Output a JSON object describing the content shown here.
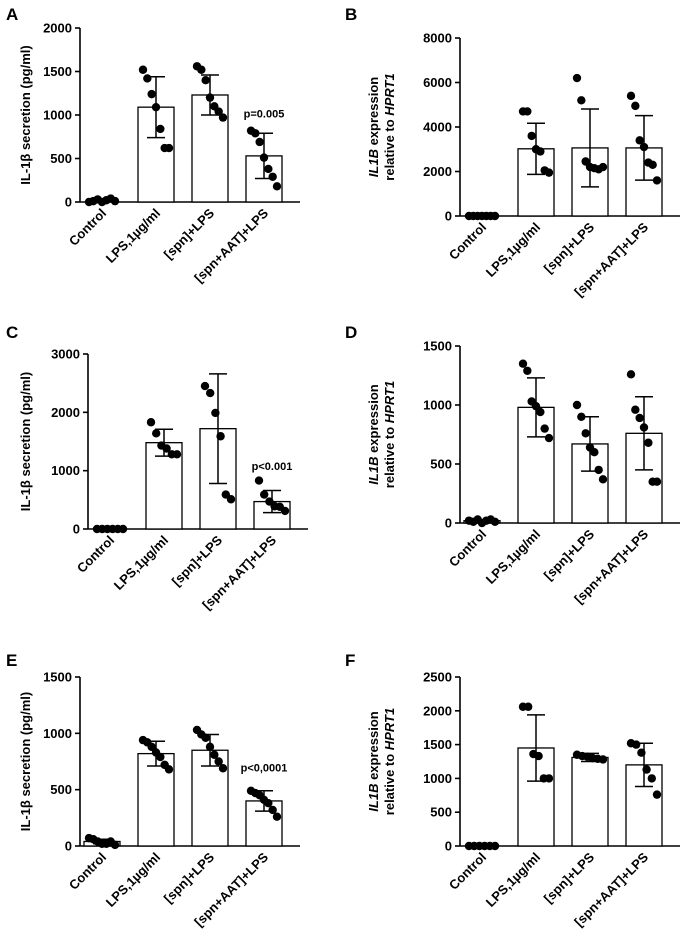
{
  "chart_data": [
    {
      "panel": "A",
      "type": "bar",
      "ylabel": "IL-1β secretion (pg/ml)",
      "ylim": [
        0,
        2000
      ],
      "yticks": [
        0,
        500,
        1000,
        1500,
        2000
      ],
      "categories": [
        "Control",
        "LPS,1µg/ml",
        "[spn]+LPS",
        "[spn+AAT]+LPS"
      ],
      "means": [
        20,
        1090,
        1230,
        530
      ],
      "sd": [
        10,
        350,
        230,
        260
      ],
      "points": [
        [
          0,
          10,
          30,
          0,
          20,
          40,
          10
        ],
        [
          1520,
          1420,
          1240,
          1090,
          840,
          620,
          620
        ],
        [
          1560,
          1520,
          1400,
          1200,
          1100,
          1040,
          970
        ],
        [
          820,
          790,
          690,
          510,
          380,
          290,
          180
        ]
      ],
      "annotation": {
        "category": 3,
        "text": "p=0.005",
        "y": 970
      }
    },
    {
      "panel": "B",
      "type": "bar",
      "ylabel_main": "IL1B",
      "ylabel_main_suffix": " expression",
      "ylabel_second_prefix": "relative to ",
      "ylabel_second": "HPRT1",
      "ylim": [
        0,
        8000
      ],
      "yticks": [
        0,
        2000,
        4000,
        6000,
        8000
      ],
      "categories": [
        "Control",
        "LPS,1µg/ml",
        "[spn]+LPS",
        "[spn+AAT]+LPS"
      ],
      "means": [
        10,
        3020,
        3060,
        3060
      ],
      "sd": [
        5,
        1150,
        1750,
        1450
      ],
      "points": [
        [
          0,
          0,
          0,
          0,
          0,
          0,
          0
        ],
        [
          4700,
          4700,
          3600,
          3000,
          2900,
          2050,
          1950
        ],
        [
          6200,
          5200,
          2450,
          2200,
          2150,
          2100,
          2200
        ],
        [
          5400,
          4950,
          3400,
          3100,
          2400,
          2300,
          1600
        ]
      ]
    },
    {
      "panel": "C",
      "type": "bar",
      "ylabel": "IL-1β secretion (pg/ml)",
      "ylim": [
        0,
        3000
      ],
      "yticks": [
        0,
        1000,
        2000,
        3000
      ],
      "categories": [
        "Control",
        "LPS,1µg/ml",
        "[spn]+LPS",
        "[spn+AAT]+LPS"
      ],
      "means": [
        10,
        1480,
        1720,
        470
      ],
      "sd": [
        5,
        230,
        940,
        190
      ],
      "points": [
        [
          0,
          0,
          0,
          0,
          0,
          0
        ],
        [
          1830,
          1640,
          1430,
          1380,
          1280,
          1280
        ],
        [
          2450,
          2330,
          1990,
          1590,
          590,
          510
        ],
        [
          830,
          590,
          470,
          390,
          380,
          310
        ]
      ],
      "annotation": {
        "category": 3,
        "text": "p<0.001",
        "y": 1010
      }
    },
    {
      "panel": "D",
      "type": "bar",
      "ylabel_main": "IL1B",
      "ylabel_main_suffix": " expression",
      "ylabel_second_prefix": "relative to ",
      "ylabel_second": "HPRT1",
      "ylim": [
        0,
        1500
      ],
      "yticks": [
        0,
        500,
        1000,
        1500
      ],
      "categories": [
        "Control",
        "LPS,1µg/ml",
        "[spn]+LPS",
        "[spn+AAT]+LPS"
      ],
      "means": [
        20,
        980,
        670,
        760
      ],
      "sd": [
        10,
        250,
        230,
        310
      ],
      "points": [
        [
          20,
          10,
          30,
          0,
          20,
          30,
          10
        ],
        [
          1350,
          1290,
          1030,
          990,
          940,
          800,
          720
        ],
        [
          1000,
          900,
          760,
          640,
          600,
          450,
          370
        ],
        [
          1260,
          960,
          890,
          810,
          680,
          350,
          350
        ]
      ]
    },
    {
      "panel": "E",
      "type": "bar",
      "ylabel": "IL-1β secretion (pg/ml)",
      "ylim": [
        0,
        1500
      ],
      "yticks": [
        0,
        500,
        1000,
        1500
      ],
      "categories": [
        "Control",
        "LPS,1µg/ml",
        "[spn]+LPS",
        "[spn+AAT]+LPS"
      ],
      "means": [
        40,
        820,
        850,
        400
      ],
      "sd": [
        20,
        110,
        140,
        90
      ],
      "points": [
        [
          70,
          60,
          40,
          20,
          20,
          40,
          10
        ],
        [
          940,
          920,
          880,
          830,
          790,
          720,
          680
        ],
        [
          1030,
          990,
          960,
          880,
          810,
          750,
          690
        ],
        [
          490,
          470,
          450,
          410,
          380,
          320,
          260
        ]
      ],
      "annotation": {
        "category": 3,
        "text": "p<0,0001",
        "y": 660
      }
    },
    {
      "panel": "F",
      "type": "bar",
      "ylabel_main": "IL1B",
      "ylabel_main_suffix": " expression",
      "ylabel_second_prefix": "relative to ",
      "ylabel_second": "HPRT1",
      "ylim": [
        0,
        2500
      ],
      "yticks": [
        0,
        500,
        1000,
        1500,
        2000,
        2500
      ],
      "categories": [
        "Control",
        "LPS,1µg/ml",
        "[spn]+LPS",
        "[spn+AAT]+LPS"
      ],
      "means": [
        10,
        1450,
        1310,
        1200
      ],
      "sd": [
        5,
        490,
        60,
        320
      ],
      "points": [
        [
          0,
          0,
          0,
          0,
          0,
          0
        ],
        [
          2060,
          2060,
          1360,
          1330,
          1000,
          1000
        ],
        [
          1350,
          1330,
          1320,
          1300,
          1290,
          1280
        ],
        [
          1520,
          1500,
          1380,
          1130,
          1000,
          760
        ]
      ]
    }
  ]
}
